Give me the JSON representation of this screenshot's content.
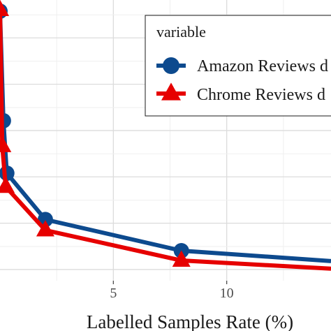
{
  "chart_data": {
    "type": "line",
    "xlabel": "Labelled Samples Rate (%)",
    "x_ticks": [
      5,
      10
    ],
    "xlim": [
      0,
      14.6
    ],
    "ylim": [
      0,
      1
    ],
    "grid": true,
    "legend": {
      "title": "variable",
      "placement": "top-right",
      "entries": [
        "Amazon Reviews d",
        "Chrome Reviews d"
      ]
    },
    "series": [
      {
        "name": "Amazon Reviews d",
        "color": "#0d4a8e",
        "marker": "circle",
        "x": [
          0,
          0.15,
          0.3,
          2.0,
          8.0,
          14.6
        ],
        "y": [
          0.96,
          0.57,
          0.383,
          0.218,
          0.107,
          0.07
        ]
      },
      {
        "name": "Chrome Reviews d",
        "color": "#e60000",
        "marker": "triangle",
        "x": [
          0,
          0.1,
          0.25,
          2.0,
          8.0,
          14.6
        ],
        "y": [
          0.965,
          0.48,
          0.335,
          0.18,
          0.072,
          0.043
        ]
      }
    ]
  }
}
